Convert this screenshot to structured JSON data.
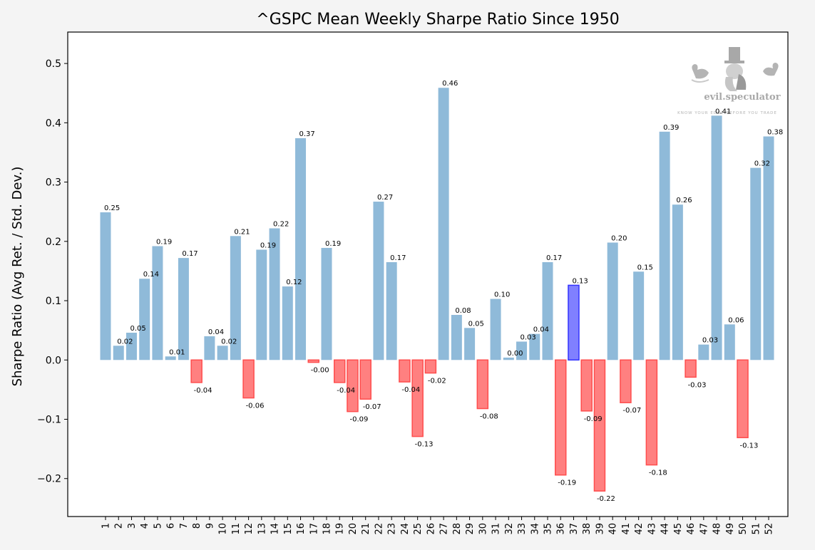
{
  "chart_data": {
    "type": "bar",
    "title": "^GSPC Mean Weekly Sharpe Ratio Since 1950",
    "xlabel": "",
    "ylabel": "Sharpe Ratio (Avg Ret. / Std. Dev.)",
    "ylim": [
      -0.264,
      0.553
    ],
    "yticks": [
      -0.2,
      -0.1,
      0.0,
      0.1,
      0.2,
      0.3,
      0.4,
      0.5
    ],
    "ytick_labels": [
      "−0.2",
      "−0.1",
      "0.0",
      "0.1",
      "0.2",
      "0.3",
      "0.4",
      "0.5"
    ],
    "grid": false,
    "categories": [
      "1",
      "2",
      "3",
      "4",
      "5",
      "6",
      "7",
      "8",
      "9",
      "10",
      "11",
      "12",
      "13",
      "14",
      "15",
      "16",
      "17",
      "18",
      "19",
      "20",
      "21",
      "22",
      "23",
      "24",
      "25",
      "26",
      "27",
      "28",
      "29",
      "30",
      "31",
      "32",
      "33",
      "34",
      "35",
      "36",
      "37",
      "38",
      "39",
      "40",
      "41",
      "42",
      "43",
      "44",
      "45",
      "46",
      "47",
      "48",
      "49",
      "50",
      "51",
      "52"
    ],
    "values": [
      0.249,
      0.024,
      0.046,
      0.137,
      0.192,
      0.006,
      0.172,
      -0.038,
      0.04,
      0.024,
      0.209,
      -0.064,
      0.186,
      0.222,
      0.124,
      0.374,
      -0.004,
      0.189,
      -0.038,
      -0.087,
      -0.066,
      0.267,
      0.165,
      -0.037,
      -0.129,
      -0.022,
      0.459,
      0.076,
      0.054,
      -0.082,
      0.103,
      0.004,
      0.031,
      0.044,
      0.165,
      -0.194,
      0.126,
      -0.086,
      -0.221,
      0.198,
      -0.072,
      0.149,
      -0.177,
      0.385,
      0.262,
      -0.029,
      0.026,
      0.412,
      0.06,
      -0.131,
      0.324,
      0.377
    ],
    "data_labels": [
      "0.25",
      "0.02",
      "0.05",
      "0.14",
      "0.19",
      "0.01",
      "0.17",
      "-0.04",
      "0.04",
      "0.02",
      "0.21",
      "-0.06",
      "0.19",
      "0.22",
      "0.12",
      "0.37",
      "-0.00",
      "0.19",
      "-0.04",
      "-0.09",
      "-0.07",
      "0.27",
      "0.17",
      "-0.04",
      "-0.13",
      "-0.02",
      "0.46",
      "0.08",
      "0.05",
      "-0.08",
      "0.10",
      "0.00",
      "0.03",
      "0.04",
      "0.17",
      "-0.19",
      "0.13",
      "-0.09",
      "-0.22",
      "0.20",
      "-0.07",
      "0.15",
      "-0.18",
      "0.39",
      "0.26",
      "-0.03",
      "0.03",
      "0.41",
      "0.06",
      "-0.13",
      "0.32",
      "0.38"
    ],
    "highlight_category": "37",
    "colors": {
      "positive_fill": "#8fbad9",
      "negative_fill": "#ff8080",
      "negative_edge": "#ff4d4d",
      "highlight_fill": "#8080ff",
      "highlight_edge": "#3333ff",
      "highlight_tick": "#3333ff",
      "plot_bg": "#ffffff",
      "figure_bg": "#f4f4f4"
    }
  },
  "watermark": {
    "brand": "evil.speculator",
    "tagline": "KNOW YOUR EDGE BEFORE YOU TRADE"
  }
}
